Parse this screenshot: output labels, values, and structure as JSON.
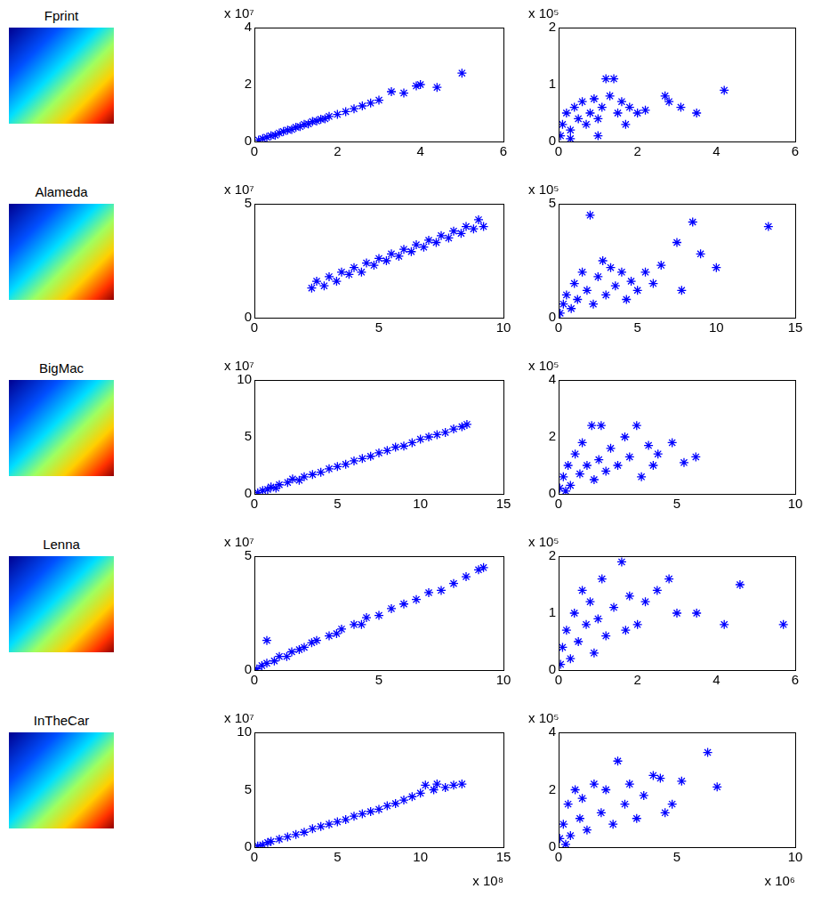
{
  "image_labels": [
    "Fprint",
    "Alameda",
    "BigMac",
    "Lenna",
    "InTheCar"
  ],
  "chart_data": [
    {
      "type": "scatter",
      "marker": "star",
      "color": "#0000ff",
      "grid": false,
      "y_multiplier": "x 10⁷",
      "xlim": [
        0,
        6
      ],
      "xticks": [
        0,
        2,
        4,
        6
      ],
      "ylim": [
        0,
        4
      ],
      "yticks": [
        0,
        2,
        4
      ],
      "x": [
        0.1,
        0.2,
        0.3,
        0.4,
        0.5,
        0.6,
        0.7,
        0.8,
        0.9,
        1.0,
        1.1,
        1.2,
        1.3,
        1.4,
        1.5,
        1.6,
        1.7,
        1.8,
        2.0,
        2.2,
        2.4,
        2.6,
        2.8,
        3.0,
        3.3,
        3.6,
        3.9,
        4.0,
        4.4,
        5.0
      ],
      "values": [
        0.05,
        0.1,
        0.15,
        0.2,
        0.22,
        0.3,
        0.35,
        0.4,
        0.42,
        0.5,
        0.52,
        0.6,
        0.62,
        0.7,
        0.72,
        0.78,
        0.8,
        0.88,
        0.95,
        1.05,
        1.15,
        1.25,
        1.35,
        1.45,
        1.75,
        1.7,
        1.95,
        2.0,
        1.9,
        2.4
      ]
    },
    {
      "type": "scatter",
      "marker": "star",
      "color": "#0000ff",
      "grid": false,
      "y_multiplier": "x 10⁵",
      "xlim": [
        0,
        6
      ],
      "xticks": [
        0,
        2,
        4,
        6
      ],
      "ylim": [
        0,
        2
      ],
      "yticks": [
        0,
        1,
        2
      ],
      "x": [
        0.05,
        0.1,
        0.2,
        0.3,
        0.4,
        0.5,
        0.6,
        0.7,
        0.8,
        0.9,
        1.0,
        1.1,
        1.2,
        1.3,
        1.4,
        1.5,
        1.6,
        1.7,
        1.8,
        2.0,
        2.2,
        2.7,
        2.8,
        3.1,
        3.5,
        4.2,
        0.3,
        1.0
      ],
      "values": [
        0.1,
        0.3,
        0.5,
        0.2,
        0.6,
        0.4,
        0.7,
        0.3,
        0.5,
        0.75,
        0.4,
        0.6,
        1.1,
        0.8,
        1.1,
        0.5,
        0.7,
        0.3,
        0.6,
        0.5,
        0.55,
        0.8,
        0.7,
        0.6,
        0.5,
        0.9,
        0.05,
        0.1
      ]
    },
    {
      "type": "scatter",
      "marker": "star",
      "color": "#0000ff",
      "grid": false,
      "y_multiplier": "x 10⁷",
      "xlim": [
        0,
        10
      ],
      "xticks": [
        0,
        5,
        10
      ],
      "ylim": [
        0,
        5
      ],
      "yticks": [
        0,
        5
      ],
      "x": [
        2.3,
        2.5,
        2.8,
        3.0,
        3.3,
        3.5,
        3.8,
        4.0,
        4.3,
        4.5,
        4.8,
        5.0,
        5.3,
        5.5,
        5.8,
        6.0,
        6.3,
        6.5,
        6.8,
        7.0,
        7.3,
        7.5,
        7.8,
        8.0,
        8.3,
        8.5,
        8.8,
        9.0,
        9.2
      ],
      "values": [
        1.3,
        1.6,
        1.4,
        1.8,
        1.6,
        2.0,
        1.9,
        2.2,
        2.0,
        2.4,
        2.3,
        2.6,
        2.5,
        2.8,
        2.7,
        3.0,
        2.9,
        3.2,
        3.1,
        3.4,
        3.3,
        3.6,
        3.5,
        3.8,
        3.7,
        4.0,
        3.9,
        4.3,
        4.0
      ]
    },
    {
      "type": "scatter",
      "marker": "star",
      "color": "#0000ff",
      "grid": false,
      "y_multiplier": "x 10⁵",
      "xlim": [
        0,
        15
      ],
      "xticks": [
        0,
        5,
        10,
        15
      ],
      "ylim": [
        0,
        5
      ],
      "yticks": [
        0,
        5
      ],
      "x": [
        0.1,
        0.3,
        0.5,
        0.8,
        1.0,
        1.2,
        1.5,
        1.8,
        2.0,
        2.2,
        2.5,
        2.8,
        3.0,
        3.3,
        3.6,
        4.0,
        4.3,
        4.6,
        5.0,
        5.5,
        6.0,
        6.5,
        7.5,
        7.8,
        8.5,
        9.0,
        10.0,
        13.3
      ],
      "values": [
        0.2,
        0.6,
        1.0,
        0.4,
        1.5,
        0.8,
        2.0,
        1.2,
        4.5,
        0.6,
        1.8,
        2.5,
        1.0,
        2.2,
        1.4,
        2.0,
        0.8,
        1.6,
        1.2,
        2.0,
        1.5,
        2.3,
        3.3,
        1.2,
        4.2,
        2.8,
        2.2,
        4.0
      ]
    },
    {
      "type": "scatter",
      "marker": "star",
      "color": "#0000ff",
      "grid": false,
      "y_multiplier": "x 10⁷",
      "xlim": [
        0,
        15
      ],
      "xticks": [
        0,
        5,
        10,
        15
      ],
      "ylim": [
        0,
        10
      ],
      "yticks": [
        0,
        5,
        10
      ],
      "x": [
        0.2,
        0.5,
        0.8,
        1.0,
        1.3,
        1.5,
        2.0,
        2.3,
        2.7,
        3.0,
        3.5,
        4.0,
        4.5,
        5.0,
        5.5,
        6.0,
        6.5,
        7.0,
        7.5,
        8.0,
        8.5,
        9.0,
        9.5,
        10.0,
        10.5,
        11.0,
        11.5,
        12.0,
        12.5,
        12.8
      ],
      "values": [
        0.1,
        0.3,
        0.4,
        0.6,
        0.5,
        0.8,
        1.0,
        1.3,
        1.2,
        1.5,
        1.7,
        1.9,
        2.2,
        2.4,
        2.6,
        2.9,
        3.1,
        3.3,
        3.6,
        3.8,
        4.1,
        4.2,
        4.5,
        4.8,
        5.0,
        5.2,
        5.4,
        5.7,
        5.9,
        6.1
      ]
    },
    {
      "type": "scatter",
      "marker": "star",
      "color": "#0000ff",
      "grid": false,
      "y_multiplier": "x 10⁵",
      "xlim": [
        0,
        10
      ],
      "xticks": [
        0,
        5,
        10
      ],
      "ylim": [
        0,
        4
      ],
      "yticks": [
        0,
        2,
        4
      ],
      "x": [
        0.05,
        0.2,
        0.4,
        0.5,
        0.7,
        0.9,
        1.0,
        1.2,
        1.4,
        1.5,
        1.7,
        1.8,
        2.0,
        2.2,
        2.5,
        2.8,
        3.0,
        3.3,
        3.5,
        3.8,
        4.0,
        4.2,
        4.8,
        5.3,
        5.8,
        0.3
      ],
      "values": [
        0.2,
        0.6,
        1.0,
        0.3,
        1.4,
        0.7,
        1.8,
        1.0,
        2.4,
        0.5,
        1.2,
        2.4,
        0.8,
        1.6,
        1.0,
        2.0,
        1.3,
        2.4,
        0.6,
        1.7,
        1.0,
        1.4,
        1.8,
        1.1,
        1.3,
        0.1
      ]
    },
    {
      "type": "scatter",
      "marker": "star",
      "color": "#0000ff",
      "grid": false,
      "y_multiplier": "x 10⁷",
      "xlim": [
        0,
        10
      ],
      "xticks": [
        0,
        5,
        10
      ],
      "ylim": [
        0,
        5
      ],
      "yticks": [
        0,
        5
      ],
      "x": [
        0.1,
        0.3,
        0.5,
        0.5,
        0.8,
        1.0,
        1.3,
        1.5,
        1.8,
        2.0,
        2.3,
        2.5,
        3.0,
        3.3,
        3.5,
        4.0,
        4.3,
        4.5,
        5.0,
        5.5,
        6.0,
        6.5,
        7.0,
        7.5,
        8.0,
        8.5,
        9.0,
        9.2
      ],
      "values": [
        0.05,
        0.2,
        1.3,
        0.3,
        0.4,
        0.6,
        0.6,
        0.8,
        0.9,
        1.0,
        1.2,
        1.3,
        1.5,
        1.6,
        1.8,
        2.0,
        2.0,
        2.3,
        2.4,
        2.7,
        2.9,
        3.1,
        3.4,
        3.5,
        3.8,
        4.1,
        4.4,
        4.5
      ]
    },
    {
      "type": "scatter",
      "marker": "star",
      "color": "#0000ff",
      "grid": false,
      "y_multiplier": "x 10⁵",
      "xlim": [
        0,
        6
      ],
      "xticks": [
        0,
        2,
        4,
        6
      ],
      "ylim": [
        0,
        2
      ],
      "yticks": [
        0,
        1,
        2
      ],
      "x": [
        0.05,
        0.1,
        0.2,
        0.3,
        0.4,
        0.5,
        0.6,
        0.7,
        0.8,
        0.9,
        1.0,
        1.1,
        1.2,
        1.4,
        1.6,
        1.7,
        1.8,
        2.0,
        2.2,
        2.5,
        2.8,
        3.0,
        3.5,
        4.2,
        4.6,
        5.7
      ],
      "values": [
        0.1,
        0.4,
        0.7,
        0.2,
        1.0,
        0.5,
        1.4,
        0.8,
        1.2,
        0.3,
        0.9,
        1.6,
        0.6,
        1.1,
        1.9,
        0.7,
        1.3,
        0.8,
        1.2,
        1.4,
        1.6,
        1.0,
        1.0,
        0.8,
        1.5,
        0.8
      ]
    },
    {
      "type": "scatter",
      "marker": "star",
      "color": "#0000ff",
      "grid": false,
      "y_multiplier": "x 10⁷",
      "x_multiplier": "x 10⁸",
      "xlim": [
        0,
        15
      ],
      "xticks": [
        0,
        5,
        10,
        15
      ],
      "ylim": [
        0,
        10
      ],
      "yticks": [
        0,
        5,
        10
      ],
      "x": [
        0.2,
        0.5,
        0.8,
        1.0,
        1.5,
        2.0,
        2.5,
        3.0,
        3.5,
        4.0,
        4.5,
        5.0,
        5.5,
        6.0,
        6.5,
        7.0,
        7.5,
        8.0,
        8.5,
        9.0,
        9.5,
        10.0,
        10.3,
        10.8,
        11.0,
        11.5,
        12.0,
        12.5
      ],
      "values": [
        0.1,
        0.2,
        0.4,
        0.5,
        0.7,
        0.9,
        1.1,
        1.3,
        1.6,
        1.8,
        2.0,
        2.2,
        2.4,
        2.7,
        2.9,
        3.1,
        3.3,
        3.6,
        3.8,
        4.1,
        4.4,
        4.7,
        5.4,
        5.0,
        5.5,
        5.2,
        5.4,
        5.5
      ]
    },
    {
      "type": "scatter",
      "marker": "star",
      "color": "#0000ff",
      "grid": false,
      "y_multiplier": "x 10⁵",
      "x_multiplier": "x 10⁶",
      "xlim": [
        0,
        10
      ],
      "xticks": [
        0,
        5,
        10
      ],
      "ylim": [
        0,
        4
      ],
      "yticks": [
        0,
        2,
        4
      ],
      "x": [
        0.05,
        0.2,
        0.4,
        0.5,
        0.7,
        0.9,
        1.0,
        1.2,
        1.5,
        1.8,
        2.0,
        2.3,
        2.5,
        2.8,
        3.0,
        3.3,
        3.6,
        4.0,
        4.3,
        4.5,
        4.8,
        5.2,
        6.3,
        6.7,
        0.3
      ],
      "values": [
        0.3,
        0.8,
        1.5,
        0.4,
        2.0,
        1.0,
        1.7,
        0.6,
        2.2,
        1.2,
        2.0,
        0.8,
        3.0,
        1.5,
        2.2,
        1.0,
        1.8,
        2.5,
        2.4,
        1.2,
        1.5,
        2.3,
        3.3,
        2.1,
        0.1
      ]
    }
  ]
}
